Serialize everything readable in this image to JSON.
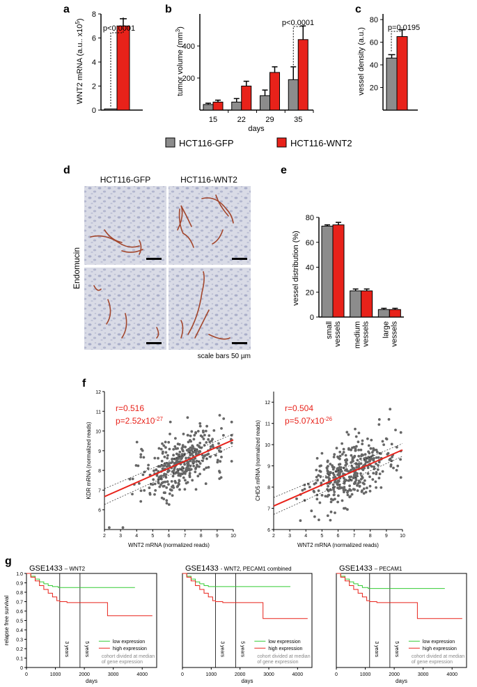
{
  "colors": {
    "gfp": "#8c8c8c",
    "wnt2": "#e8221a",
    "low": "#33cc33",
    "high": "#e8221a",
    "scatter": "#666666",
    "fit": "#e8221a"
  },
  "panels": {
    "a": "a",
    "b": "b",
    "c": "c",
    "d": "d",
    "e": "e",
    "f": "f",
    "g": "g"
  },
  "legend": {
    "gfp": "HCT116-GFP",
    "wnt2": "HCT116-WNT2"
  },
  "chart_data": [
    {
      "id": "a",
      "type": "bar",
      "categories": [
        "HCT116-GFP",
        "HCT116-WNT2"
      ],
      "values": [
        0.1,
        7.0
      ],
      "errors": [
        0,
        0.6
      ],
      "ylabel": "WNT2 mRNA (a.u.. x10",
      "ylabel_sup": "5",
      "ylabel_end": ")",
      "ylim": [
        0,
        8
      ],
      "yticks": [
        "0",
        "2",
        "4",
        "6",
        "8"
      ],
      "annotation": "p<0.0001"
    },
    {
      "id": "b",
      "type": "bar",
      "categories": [
        "15",
        "22",
        "29",
        "35"
      ],
      "series": [
        {
          "name": "HCT116-GFP",
          "values": [
            35,
            50,
            90,
            190
          ],
          "errors": [
            8,
            22,
            35,
            80
          ]
        },
        {
          "name": "HCT116-WNT2",
          "values": [
            50,
            150,
            235,
            440
          ],
          "errors": [
            12,
            30,
            35,
            85
          ]
        }
      ],
      "xlabel": "days",
      "ylabel": "tumor volume (mm",
      "ylabel_sup": "3",
      "ylabel_end": ")",
      "ylim": [
        0,
        600
      ],
      "yticks": [
        "200",
        "400"
      ],
      "annotation": "p<0.0001"
    },
    {
      "id": "c",
      "type": "bar",
      "categories": [
        "HCT116-GFP",
        "HCT116-WNT2"
      ],
      "values": [
        46,
        65
      ],
      "errors": [
        3,
        6
      ],
      "ylabel": "vessel density (a.u.)",
      "ylim": [
        0,
        85
      ],
      "yticks": [
        "20",
        "40",
        "60",
        "80"
      ],
      "annotation": "p=0.0195"
    },
    {
      "id": "e",
      "type": "bar",
      "categories": [
        "small vessels",
        "medium vessels",
        "large vessels"
      ],
      "series": [
        {
          "name": "HCT116-GFP",
          "values": [
            73,
            21,
            6
          ],
          "errors": [
            1,
            1.5,
            1
          ]
        },
        {
          "name": "HCT116-WNT2",
          "values": [
            74,
            21,
            6
          ],
          "errors": [
            2,
            1.5,
            1
          ]
        }
      ],
      "ylabel": "vessel distribution (%)",
      "ylim": [
        0,
        80
      ],
      "yticks": [
        "0",
        "20",
        "40",
        "60",
        "80"
      ]
    },
    {
      "id": "f1",
      "type": "scatter",
      "xlabel": "WNT2 mRNA (normalized reads)",
      "ylabel": "KDR mRNA (normalized reads)",
      "xlim": [
        2,
        10
      ],
      "ylim": [
        5,
        12
      ],
      "xticks": [
        "2",
        "3",
        "4",
        "5",
        "6",
        "7",
        "8",
        "9",
        "10"
      ],
      "yticks": [
        "6",
        "7",
        "8",
        "9",
        "10",
        "11",
        "12"
      ],
      "r": "r=0.516",
      "p": "p=2.52x10",
      "p_exp": "-27",
      "fit": {
        "slope": 0.36,
        "intercept": 5.95
      },
      "n_points": 380
    },
    {
      "id": "f2",
      "type": "scatter",
      "xlabel": "WNT2 mRNA (normalized reads)",
      "ylabel": "CHD5 mRNA (normalized reads)",
      "xlim": [
        2,
        10
      ],
      "ylim": [
        6,
        12.5
      ],
      "xticks": [
        "2",
        "3",
        "4",
        "5",
        "6",
        "7",
        "8",
        "9",
        "10"
      ],
      "yticks": [
        "6",
        "7",
        "8",
        "9",
        "10",
        "11",
        "12"
      ],
      "r": "r=0.504",
      "p": "p=5.07x10",
      "p_exp": "-26",
      "fit": {
        "slope": 0.33,
        "intercept": 6.45
      },
      "n_points": 380
    },
    {
      "id": "g1",
      "type": "line",
      "title": "GSE1433",
      "subtitle": "– WNT2",
      "xlabel": "days",
      "ylabel": "relapse free survival",
      "xlim": [
        0,
        4500
      ],
      "ylim": [
        0,
        1.0
      ],
      "xticks": [
        "0",
        "1000",
        "2000",
        "3000",
        "4000"
      ],
      "yticks": [
        "0",
        "0.1",
        "0.2",
        "0.3",
        "0.4",
        "0.5",
        "0.6",
        "0.7",
        "0.8",
        "0.9",
        "1.0"
      ],
      "series": [
        {
          "name": "low expression",
          "x": [
            0,
            150,
            300,
            450,
            600,
            750,
            900,
            1100,
            3750
          ],
          "y": [
            1.0,
            0.97,
            0.94,
            0.91,
            0.89,
            0.87,
            0.86,
            0.85,
            0.85
          ]
        },
        {
          "name": "high expression",
          "x": [
            0,
            150,
            300,
            450,
            600,
            750,
            900,
            1050,
            1150,
            1400,
            2800,
            2800,
            4350
          ],
          "y": [
            1.0,
            0.96,
            0.92,
            0.87,
            0.83,
            0.79,
            0.75,
            0.71,
            0.7,
            0.69,
            0.69,
            0.55,
            0.55
          ]
        }
      ],
      "vlines": [
        {
          "x": 1150,
          "label": "3 years"
        },
        {
          "x": 1850,
          "label": "5 years"
        }
      ],
      "legend_low": "low expression",
      "legend_high": "high expression",
      "note1": "cohort divided at median",
      "note2": "of gene expression"
    },
    {
      "id": "g2",
      "type": "line",
      "title": "GSE1433",
      "subtitle": "- WNT2, PECAM1 combined",
      "xlabel": "days",
      "xlim": [
        0,
        4500
      ],
      "ylim": [
        0,
        1.0
      ],
      "xticks": [
        "0",
        "1000",
        "2000",
        "3000",
        "4000"
      ],
      "series": [
        {
          "name": "low expression",
          "x": [
            0,
            150,
            300,
            450,
            600,
            750,
            900,
            1100,
            3750
          ],
          "y": [
            1.0,
            0.97,
            0.94,
            0.91,
            0.89,
            0.87,
            0.86,
            0.86,
            0.86
          ]
        },
        {
          "name": "high expression",
          "x": [
            0,
            150,
            300,
            450,
            600,
            750,
            900,
            1050,
            1150,
            1400,
            2800,
            2800,
            4350
          ],
          "y": [
            1.0,
            0.96,
            0.92,
            0.87,
            0.83,
            0.79,
            0.75,
            0.71,
            0.7,
            0.69,
            0.69,
            0.52,
            0.52
          ]
        }
      ],
      "vlines": [
        {
          "x": 1150,
          "label": "3 years"
        },
        {
          "x": 1850,
          "label": "5 years"
        }
      ],
      "legend_low": "low expression",
      "legend_high": "high expression",
      "note1": "cohort divided at median",
      "note2": "of gene expression"
    },
    {
      "id": "g3",
      "type": "line",
      "title": "GSE1433",
      "subtitle": "– PECAM1",
      "xlabel": "days",
      "xlim": [
        0,
        4500
      ],
      "ylim": [
        0,
        1.0
      ],
      "xticks": [
        "0",
        "1000",
        "2000",
        "3000",
        "4000"
      ],
      "series": [
        {
          "name": "low expression",
          "x": [
            0,
            150,
            300,
            450,
            600,
            750,
            900,
            1100,
            3750
          ],
          "y": [
            1.0,
            0.97,
            0.94,
            0.91,
            0.89,
            0.87,
            0.85,
            0.84,
            0.84
          ]
        },
        {
          "name": "high expression",
          "x": [
            0,
            150,
            300,
            450,
            600,
            750,
            900,
            1050,
            1150,
            1400,
            2800,
            2800,
            4350
          ],
          "y": [
            1.0,
            0.96,
            0.92,
            0.87,
            0.83,
            0.79,
            0.75,
            0.71,
            0.7,
            0.69,
            0.69,
            0.52,
            0.52
          ]
        }
      ],
      "vlines": [
        {
          "x": 1150,
          "label": "3 years"
        },
        {
          "x": 1850,
          "label": "5 years"
        }
      ],
      "legend_low": "low expression",
      "legend_high": "high expression",
      "note1": "cohort divided at median",
      "note2": "of gene expression"
    }
  ],
  "micrographs": {
    "col1": "HCT116-GFP",
    "col2": "HCT116-WNT2",
    "row_label": "Endomucin",
    "scale_label": "scale bars 50 µm"
  }
}
